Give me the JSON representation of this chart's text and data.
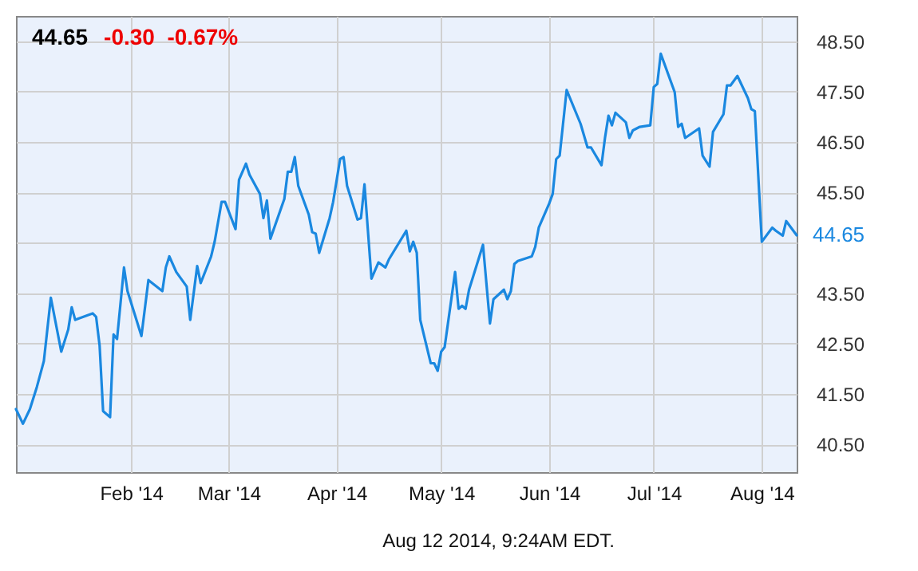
{
  "chart_data": {
    "type": "line",
    "title": "44.65",
    "subtitle": "-0.30  -0.67%",
    "annotations": [
      "Aug 12 2014, 9:24AM EDT."
    ],
    "x": [
      "2013-12-30",
      "2014-01-01",
      "2014-01-03",
      "2014-01-05",
      "2014-01-07",
      "2014-01-09",
      "2014-01-12",
      "2014-01-14",
      "2014-01-15",
      "2014-01-16",
      "2014-01-21",
      "2014-01-22",
      "2014-01-23",
      "2014-01-24",
      "2014-01-26",
      "2014-01-27",
      "2014-01-28",
      "2014-01-30",
      "2014-01-31",
      "2014-02-04",
      "2014-02-06",
      "2014-02-10",
      "2014-02-11",
      "2014-02-12",
      "2014-02-14",
      "2014-02-17",
      "2014-02-18",
      "2014-02-20",
      "2014-02-21",
      "2014-02-24",
      "2014-02-25",
      "2014-02-27",
      "2014-02-28",
      "2014-03-03",
      "2014-03-04",
      "2014-03-06",
      "2014-03-07",
      "2014-03-10",
      "2014-03-11",
      "2014-03-12",
      "2014-03-13",
      "2014-03-17",
      "2014-03-18",
      "2014-03-19",
      "2014-03-20",
      "2014-03-21",
      "2014-03-24",
      "2014-03-25",
      "2014-03-26",
      "2014-03-27",
      "2014-03-30",
      "2014-03-31",
      "2014-04-02",
      "2014-04-03",
      "2014-04-04",
      "2014-04-07",
      "2014-04-08",
      "2014-04-09",
      "2014-04-11",
      "2014-04-13",
      "2014-04-15",
      "2014-04-16",
      "2014-04-21",
      "2014-04-22",
      "2014-04-23",
      "2014-04-24",
      "2014-04-25",
      "2014-04-28",
      "2014-04-29",
      "2014-04-30",
      "2014-05-01",
      "2014-05-02",
      "2014-05-05",
      "2014-05-06",
      "2014-05-07",
      "2014-05-08",
      "2014-05-09",
      "2014-05-13",
      "2014-05-15",
      "2014-05-16",
      "2014-05-19",
      "2014-05-20",
      "2014-05-21",
      "2014-05-22",
      "2014-05-23",
      "2014-05-27",
      "2014-05-28",
      "2014-05-29",
      "2014-06-01",
      "2014-06-02",
      "2014-06-03",
      "2014-06-04",
      "2014-06-06",
      "2014-06-10",
      "2014-06-12",
      "2014-06-13",
      "2014-06-16",
      "2014-06-17",
      "2014-06-18",
      "2014-06-19",
      "2014-06-20",
      "2014-06-23",
      "2014-06-24",
      "2014-06-25",
      "2014-06-27",
      "2014-06-30",
      "2014-07-01",
      "2014-07-02",
      "2014-07-03",
      "2014-07-07",
      "2014-07-08",
      "2014-07-09",
      "2014-07-10",
      "2014-07-14",
      "2014-07-15",
      "2014-07-17",
      "2014-07-18",
      "2014-07-21",
      "2014-07-22",
      "2014-07-23",
      "2014-07-25",
      "2014-07-28",
      "2014-07-29",
      "2014-07-30",
      "2014-08-01",
      "2014-08-04",
      "2014-08-05",
      "2014-08-07",
      "2014-08-08",
      "2014-08-11"
    ],
    "series": [
      {
        "color": "#1a88e0",
        "values": [
          41.2,
          40.91,
          41.2,
          41.64,
          42.15,
          43.41,
          42.34,
          42.78,
          43.22,
          42.97,
          43.1,
          43.03,
          42.46,
          41.16,
          41.04,
          42.68,
          42.59,
          44.01,
          43.54,
          42.65,
          43.76,
          43.54,
          44.01,
          44.23,
          43.92,
          43.63,
          42.97,
          44.04,
          43.7,
          44.23,
          44.52,
          45.31,
          45.31,
          44.77,
          45.75,
          46.07,
          45.85,
          45.47,
          44.99,
          45.34,
          44.58,
          45.37,
          45.91,
          45.91,
          46.2,
          45.63,
          45.06,
          44.71,
          44.68,
          44.3,
          44.99,
          45.31,
          46.16,
          46.2,
          45.63,
          44.96,
          44.99,
          45.66,
          43.79,
          44.11,
          44.01,
          44.17,
          44.74,
          44.33,
          44.52,
          44.3,
          42.97,
          42.11,
          42.11,
          41.96,
          42.34,
          42.43,
          43.92,
          43.19,
          43.25,
          43.19,
          43.57,
          44.46,
          42.9,
          43.38,
          43.57,
          43.38,
          43.54,
          44.08,
          44.14,
          44.23,
          44.42,
          44.8,
          45.28,
          45.47,
          46.16,
          46.23,
          47.53,
          46.86,
          46.39,
          46.39,
          46.04,
          46.58,
          47.02,
          46.83,
          47.08,
          46.89,
          46.58,
          46.73,
          46.8,
          46.83,
          47.59,
          47.65,
          48.25,
          47.49,
          46.8,
          46.86,
          46.58,
          46.77,
          46.23,
          46.01,
          46.7,
          47.05,
          47.62,
          47.62,
          47.81,
          47.37,
          47.15,
          47.11,
          44.52,
          44.8,
          44.74,
          44.64,
          44.93,
          44.65
        ],
        "value_labels": [
          null,
          null,
          null,
          null,
          null,
          null,
          null,
          null,
          null,
          null,
          null,
          null,
          null,
          null,
          null,
          null,
          null,
          null,
          null,
          null,
          null,
          null,
          null,
          null,
          null,
          null,
          null,
          null,
          null,
          null,
          null,
          null,
          null,
          null,
          null,
          null,
          null,
          null,
          null,
          null,
          null,
          null,
          null,
          null,
          null,
          null,
          null,
          null,
          null,
          null,
          null,
          null,
          null,
          null,
          null,
          null,
          null,
          null,
          null,
          null,
          null,
          null,
          null,
          null,
          null,
          null,
          null,
          null,
          null,
          null,
          null,
          null,
          null,
          null,
          null,
          null,
          null,
          null,
          null,
          null,
          null,
          null,
          null,
          null,
          null,
          null,
          null,
          null,
          null,
          null,
          null,
          null,
          null,
          null,
          null,
          null,
          null,
          null,
          null,
          null,
          null,
          null,
          null,
          null,
          null,
          null,
          null,
          null,
          null,
          null,
          null,
          null,
          null,
          null,
          null,
          null,
          null,
          null,
          null,
          null,
          null,
          null,
          null,
          null,
          null,
          null,
          null,
          null,
          null,
          "44.65"
        ]
      }
    ],
    "xlim": [
      "2013-12-30",
      "2014-08-11"
    ],
    "xticks": [
      {
        "value": "2014-02-01",
        "label": "Feb '14"
      },
      {
        "value": "2014-03-01",
        "label": "Mar '14"
      },
      {
        "value": "2014-04-01",
        "label": "Apr '14"
      },
      {
        "value": "2014-05-01",
        "label": "May '14"
      },
      {
        "value": "2014-06-01",
        "label": "Jun '14"
      },
      {
        "value": "2014-07-01",
        "label": "Jul '14"
      },
      {
        "value": "2014-08-01",
        "label": "Aug '14"
      }
    ],
    "ylim": [
      39.95,
      49.0
    ],
    "yticks": [
      {
        "value": 40.5,
        "label": "40.50"
      },
      {
        "value": 41.5,
        "label": "41.50"
      },
      {
        "value": 42.5,
        "label": "42.50"
      },
      {
        "value": 43.5,
        "label": "43.50"
      },
      {
        "value": 44.5,
        "label": null
      },
      {
        "value": 45.5,
        "label": "45.50"
      },
      {
        "value": 46.5,
        "label": "46.50"
      },
      {
        "value": 47.5,
        "label": "47.50"
      },
      {
        "value": 48.5,
        "label": "48.50"
      }
    ],
    "grid": true,
    "marker": "none",
    "line_style": "solid"
  }
}
